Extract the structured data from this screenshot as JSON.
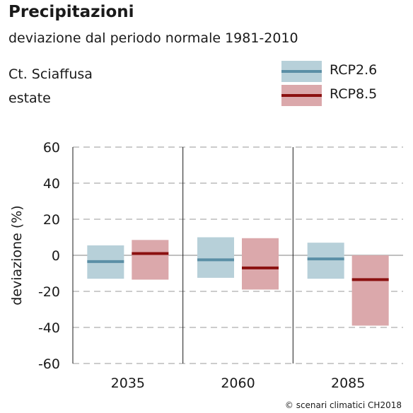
{
  "header": {
    "title": "Precipitazioni",
    "subtitle": "deviazione dal periodo normale 1981-2010",
    "location": "Ct. Sciaffusa",
    "season": "estate"
  },
  "credit": "© scenari climatici CH2018",
  "chart_data": {
    "type": "bar",
    "ylabel": "deviazione (%)",
    "ylim": [
      -60,
      60
    ],
    "yticks": [
      60,
      40,
      20,
      0,
      -20,
      -40,
      -60
    ],
    "grid": true,
    "legend_position": "top-right",
    "categories": [
      "2035",
      "2060",
      "2085"
    ],
    "series": [
      {
        "name": "RCP2.6",
        "fill_color": "#b7d0d9",
        "line_color": "#5b8fa6",
        "low": [
          -13,
          -12.5,
          -13
        ],
        "median": [
          -3.5,
          -2.5,
          -2
        ],
        "high": [
          5.5,
          10,
          7
        ]
      },
      {
        "name": "RCP8.5",
        "fill_color": "#dba8ab",
        "line_color": "#8b1010",
        "low": [
          -13.5,
          -19,
          -39
        ],
        "median": [
          1,
          -7,
          -13.5
        ],
        "high": [
          8.5,
          9.5,
          0
        ]
      }
    ]
  }
}
